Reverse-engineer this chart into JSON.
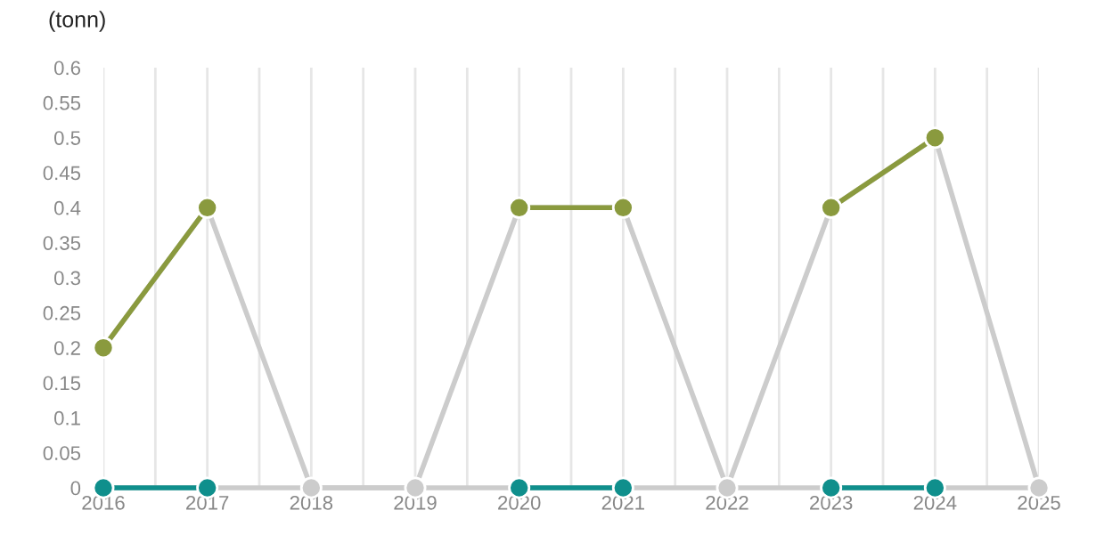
{
  "chart_data": {
    "type": "line",
    "ylabel": "(tonn)",
    "x": [
      2016,
      2017,
      2018,
      2019,
      2020,
      2021,
      2022,
      2023,
      2024,
      2025
    ],
    "series": [
      {
        "color": "#cccccc",
        "marker": "none",
        "values": [
          0.2,
          0.4,
          0,
          0,
          0.4,
          0.4,
          0,
          0.4,
          0.5,
          0
        ]
      },
      {
        "color": "#cccccc",
        "marker": "none",
        "values": [
          0,
          0,
          0,
          0,
          0,
          0,
          0,
          0,
          0,
          0
        ]
      },
      {
        "color": "#8a9a3e",
        "marker": "circle",
        "values": [
          0.2,
          0.4,
          null,
          null,
          0.4,
          0.4,
          null,
          0.4,
          0.5,
          null
        ]
      },
      {
        "color": "#0f8f8c",
        "marker": "circle",
        "values": [
          0,
          0,
          null,
          null,
          0,
          0,
          null,
          0,
          0,
          null
        ]
      },
      {
        "type": "scatter",
        "color": "#cccccc",
        "marker": "circle",
        "values": [
          null,
          null,
          0,
          0,
          null,
          null,
          0,
          null,
          null,
          0
        ]
      }
    ],
    "xlim": [
      2016,
      2025
    ],
    "xticks": [
      2016,
      {
        "value": 2016.5,
        "label": null
      },
      2017,
      {
        "value": 2017.5,
        "label": null
      },
      2018,
      {
        "value": 2018.5,
        "label": null
      },
      2019,
      {
        "value": 2019.5,
        "label": null
      },
      2020,
      {
        "value": 2020.5,
        "label": null
      },
      2021,
      {
        "value": 2021.5,
        "label": null
      },
      2022,
      {
        "value": 2022.5,
        "label": null
      },
      2023,
      {
        "value": 2023.5,
        "label": null
      },
      2024,
      {
        "value": 2024.5,
        "label": null
      },
      2025
    ],
    "ylim": [
      0,
      0.6
    ],
    "yticks": [
      0,
      0.05,
      0.1,
      0.15,
      0.2,
      0.25,
      0.3,
      0.35,
      0.4,
      0.45,
      0.5,
      0.55,
      0.6
    ],
    "grid": "x",
    "legend": false
  }
}
